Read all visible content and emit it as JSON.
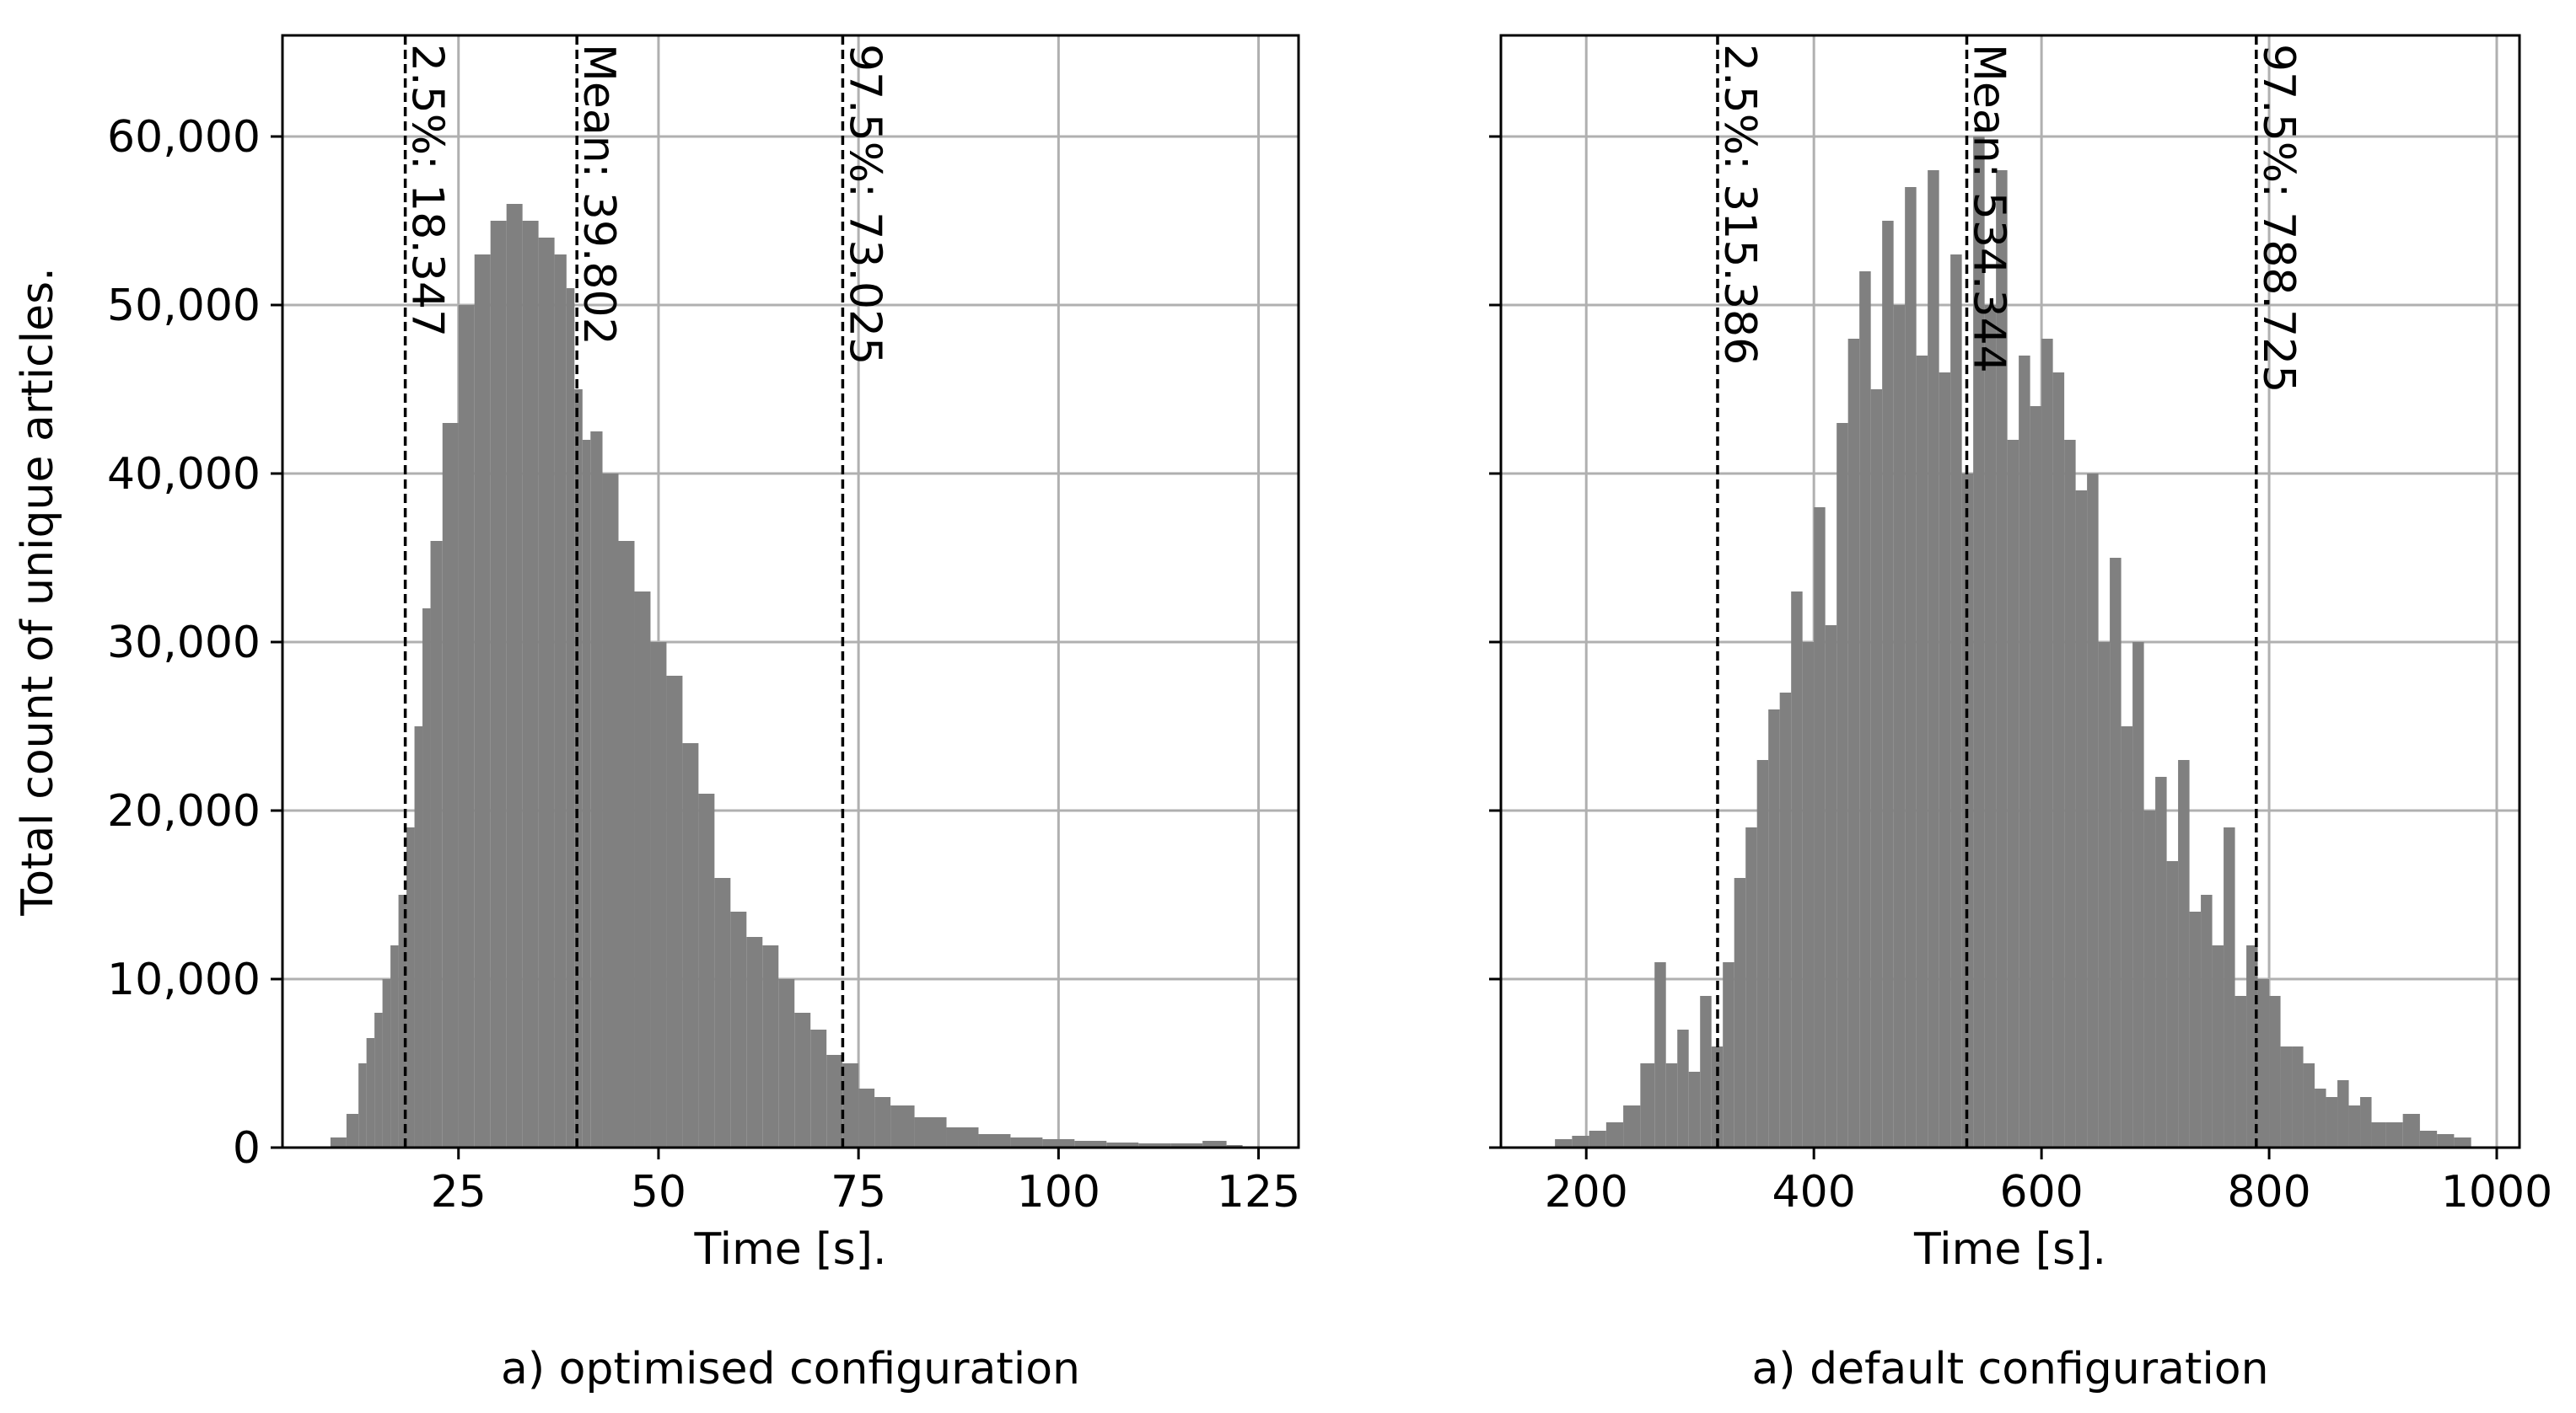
{
  "figure": {
    "ylabel": "Total count of unique articles."
  },
  "colors": {
    "bars": "#808080",
    "grid": "#b0b0b0",
    "axis": "#000000",
    "reference_lines": "#000000"
  },
  "chart_data": [
    {
      "type": "bar",
      "subtype": "histogram",
      "caption": "a) optimised configuration",
      "xlabel": "Time [s].",
      "ylabel": "Total count of unique articles.",
      "xlim": [
        3,
        130
      ],
      "ylim": [
        0,
        66000
      ],
      "grid": true,
      "xticks": [
        25,
        50,
        75,
        100,
        125
      ],
      "xtick_labels": [
        "25",
        "50",
        "75",
        "100",
        "125"
      ],
      "yticks": [
        0,
        10000,
        20000,
        30000,
        40000,
        50000,
        60000
      ],
      "ytick_labels": [
        "0",
        "10,000",
        "20,000",
        "30,000",
        "40,000",
        "50,000",
        "60,000"
      ],
      "reference_lines": [
        {
          "x": 18.347,
          "label": "2.5%: 18.347"
        },
        {
          "x": 39.802,
          "label": "Mean: 39.802"
        },
        {
          "x": 73.025,
          "label": "97.5%: 73.025"
        }
      ],
      "x": [
        8,
        10,
        12,
        13,
        14,
        15,
        16,
        17,
        18,
        19,
        20,
        21,
        22,
        24,
        26,
        28,
        30,
        32,
        34,
        36,
        38,
        39,
        40,
        41,
        42,
        44,
        46,
        48,
        50,
        52,
        54,
        56,
        58,
        60,
        62,
        64,
        66,
        68,
        70,
        72,
        74,
        76,
        78,
        80,
        84,
        88,
        92,
        96,
        100,
        104,
        108,
        112,
        116,
        120,
        122,
        124
      ],
      "values": [
        0,
        600,
        2000,
        5000,
        6500,
        8000,
        10000,
        12000,
        15000,
        19000,
        25000,
        32000,
        36000,
        43000,
        50000,
        53000,
        55000,
        56000,
        55000,
        54000,
        53000,
        51000,
        45000,
        42000,
        42500,
        40000,
        36000,
        33000,
        30000,
        28000,
        24000,
        21000,
        16000,
        14000,
        12500,
        12000,
        10000,
        8000,
        7000,
        5500,
        5000,
        3500,
        3000,
        2500,
        1800,
        1200,
        800,
        600,
        500,
        400,
        300,
        250,
        250,
        400,
        150,
        50
      ]
    },
    {
      "type": "bar",
      "subtype": "histogram",
      "caption": "a) default configuration",
      "xlabel": "Time [s].",
      "ylabel": "",
      "xlim": [
        125,
        1020
      ],
      "ylim": [
        0,
        66000
      ],
      "grid": true,
      "xticks": [
        200,
        400,
        600,
        800,
        1000
      ],
      "xtick_labels": [
        "200",
        "400",
        "600",
        "800",
        "1000"
      ],
      "yticks": [
        0,
        10000,
        20000,
        30000,
        40000,
        50000,
        60000
      ],
      "ytick_labels": [
        "",
        "",
        "",
        "",
        "",
        "",
        ""
      ],
      "reference_lines": [
        {
          "x": 315.386,
          "label": "2.5%: 315.386"
        },
        {
          "x": 534.344,
          "label": "Mean: 534.344"
        },
        {
          "x": 788.725,
          "label": "97.5%: 788.725"
        }
      ],
      "x": [
        180,
        195,
        210,
        225,
        240,
        255,
        265,
        275,
        285,
        295,
        305,
        315,
        325,
        335,
        345,
        355,
        365,
        375,
        385,
        395,
        405,
        415,
        425,
        435,
        445,
        455,
        465,
        475,
        485,
        495,
        505,
        515,
        525,
        535,
        545,
        555,
        565,
        575,
        585,
        595,
        605,
        615,
        625,
        635,
        645,
        655,
        665,
        675,
        685,
        695,
        705,
        715,
        725,
        735,
        745,
        755,
        765,
        775,
        785,
        795,
        805,
        815,
        825,
        835,
        845,
        855,
        865,
        875,
        885,
        895,
        910,
        925,
        940,
        955,
        970
      ],
      "values": [
        500,
        700,
        1000,
        1500,
        2500,
        5000,
        11000,
        5000,
        7000,
        4500,
        9000,
        6000,
        11000,
        16000,
        19000,
        23000,
        26000,
        27000,
        33000,
        30000,
        38000,
        31000,
        43000,
        48000,
        52000,
        45000,
        55000,
        50000,
        57000,
        47000,
        58000,
        46000,
        53000,
        40000,
        60000,
        50000,
        58000,
        42000,
        47000,
        44000,
        48000,
        46000,
        42000,
        39000,
        40000,
        30000,
        35000,
        25000,
        30000,
        20000,
        22000,
        17000,
        23000,
        14000,
        15000,
        12000,
        19000,
        9000,
        12000,
        10000,
        9000,
        6000,
        6000,
        5000,
        3500,
        3000,
        4000,
        2500,
        3000,
        1500,
        1500,
        2000,
        1000,
        800,
        600
      ]
    }
  ]
}
